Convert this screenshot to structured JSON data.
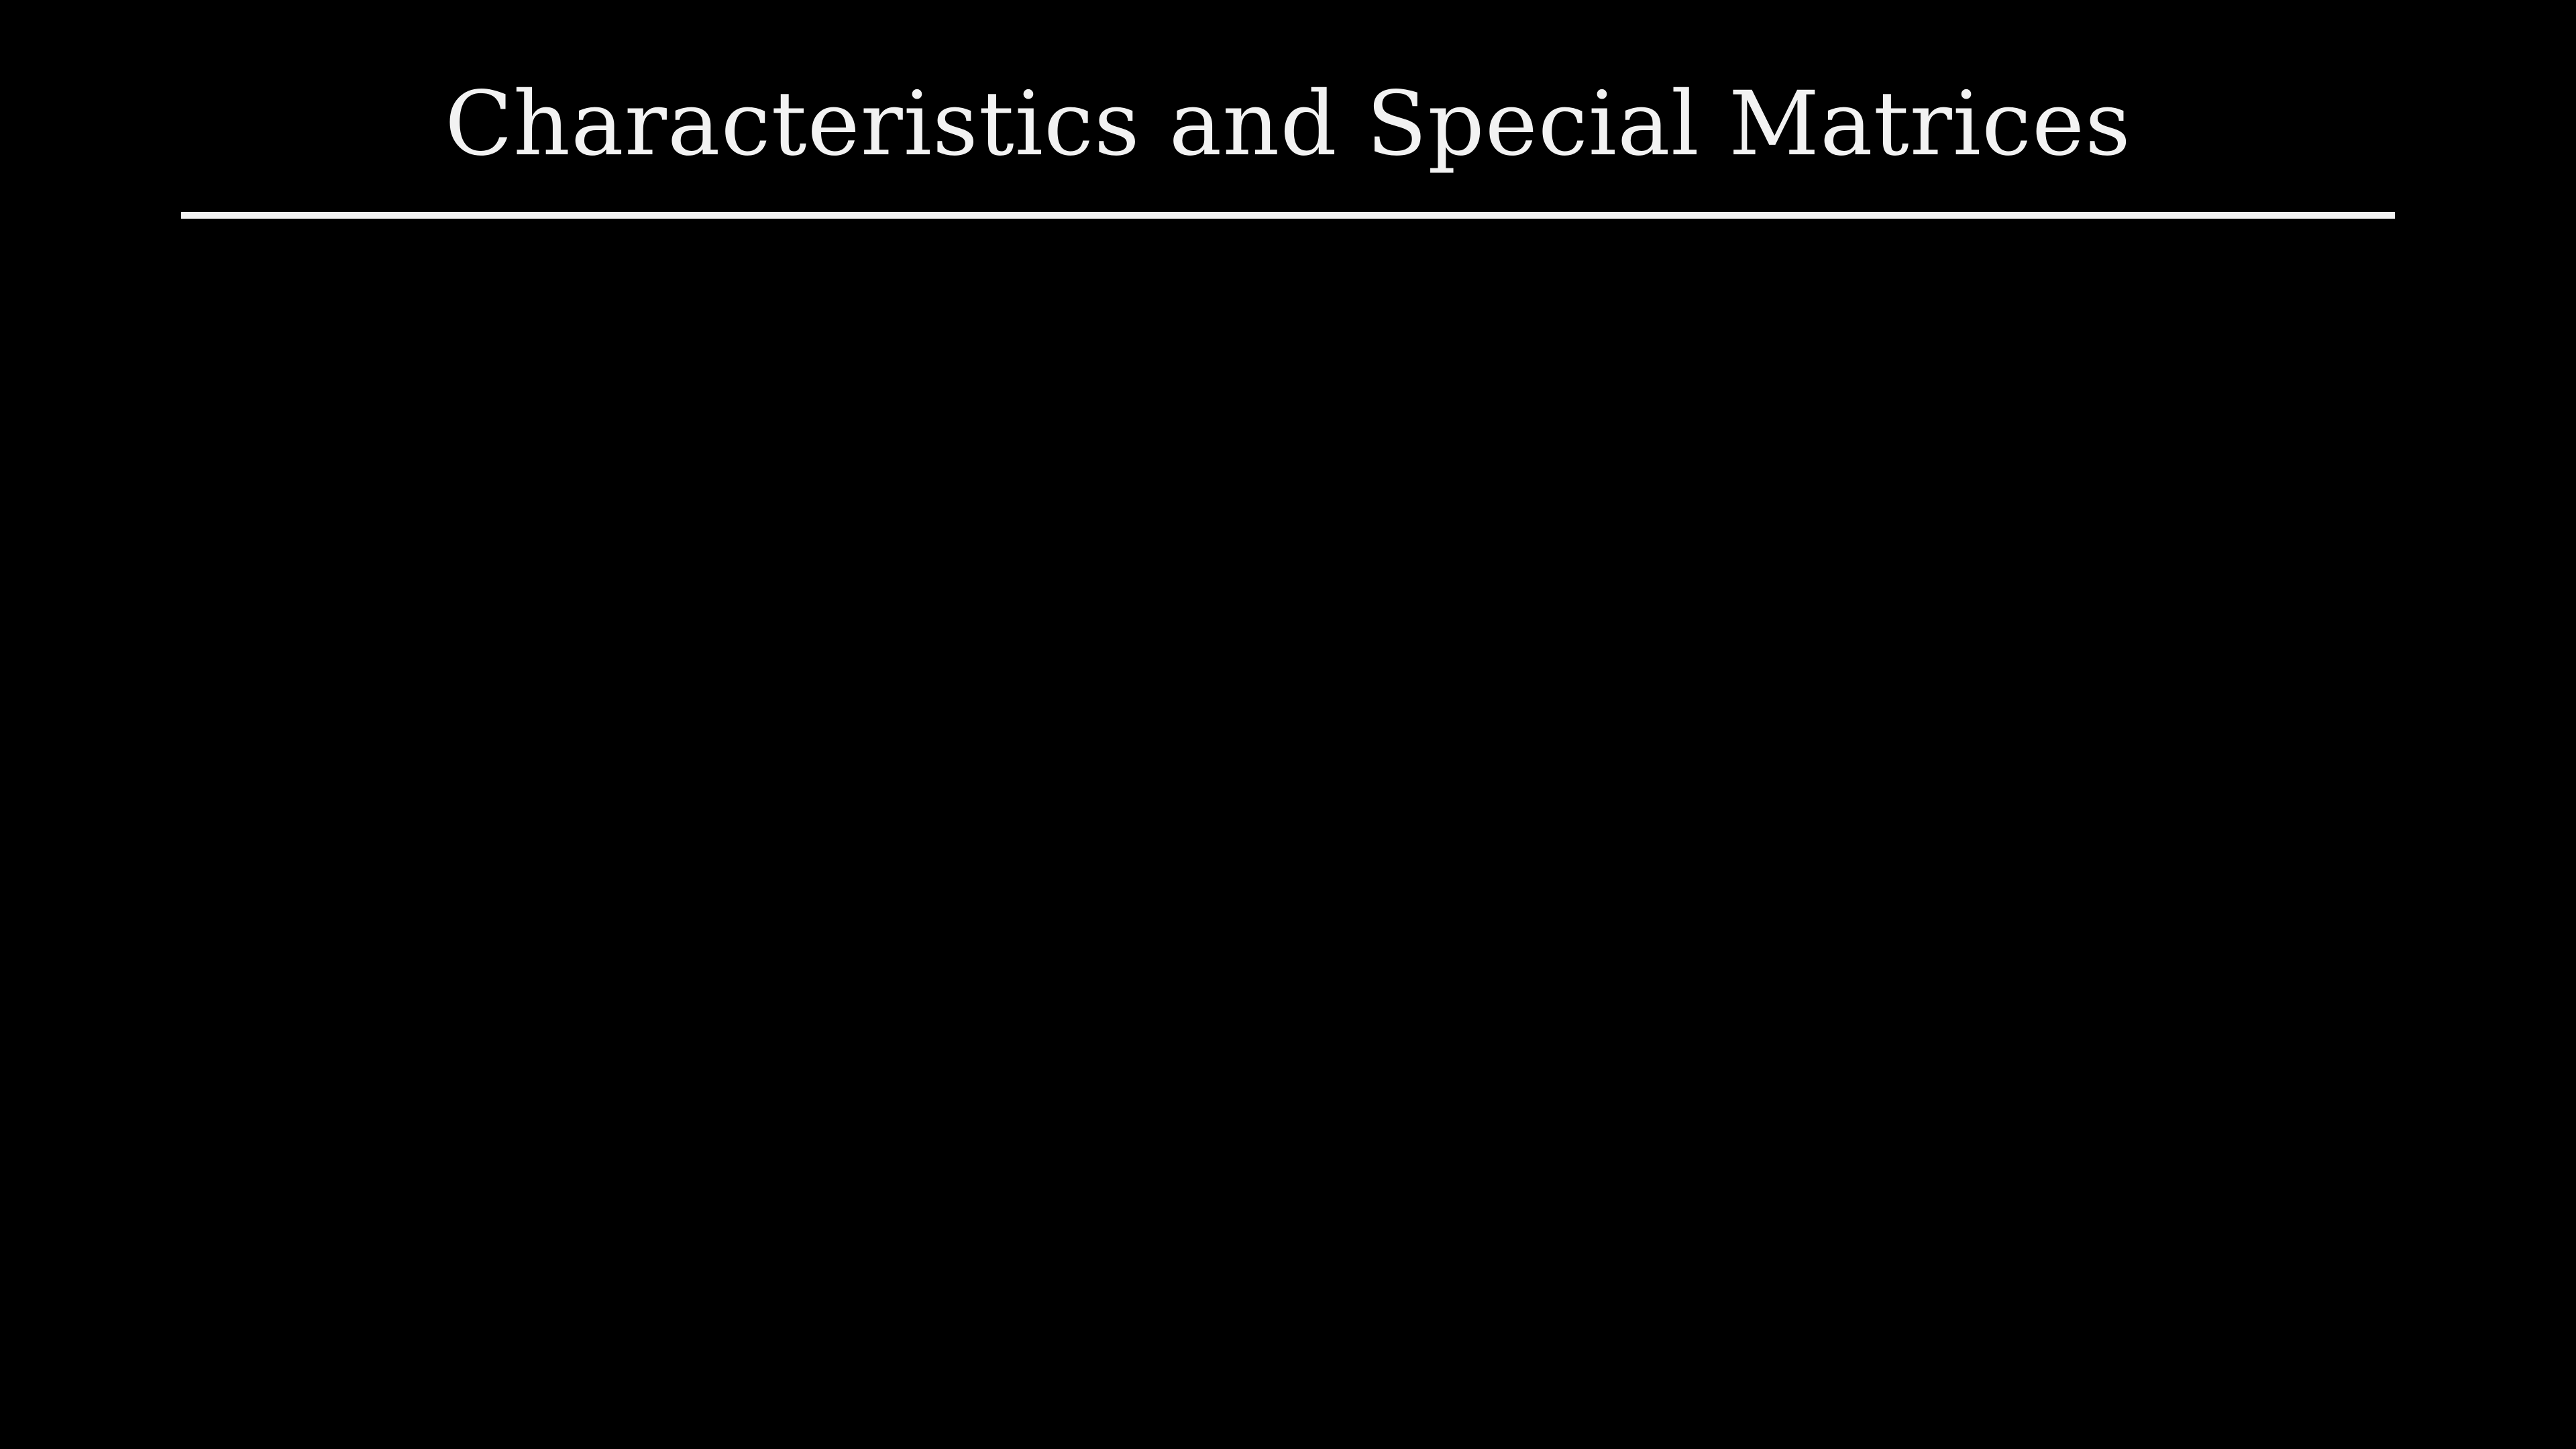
{
  "slide": {
    "title": "Characteristics and Special Matrices"
  },
  "colors": {
    "background": "#000000",
    "foreground": "#f2f2f2"
  }
}
